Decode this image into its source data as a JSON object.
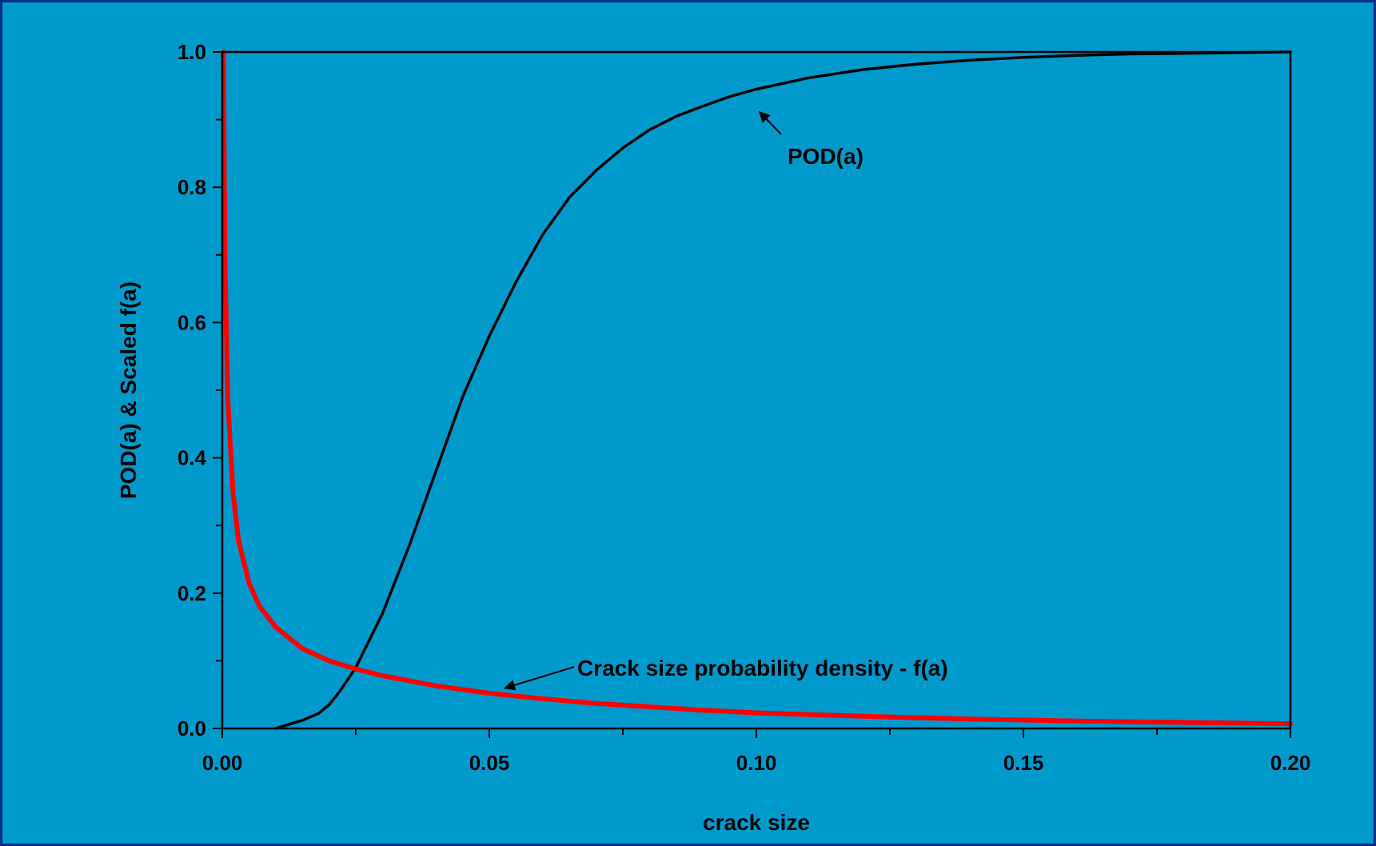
{
  "chart_data": {
    "type": "line",
    "title": "",
    "xlabel": "crack size",
    "ylabel": "POD(a) & Scaled f(a)",
    "xlim": [
      0,
      0.2
    ],
    "ylim": [
      0,
      1.0
    ],
    "x_ticks": [
      "0.00",
      "0.05",
      "0.10",
      "0.15",
      "0.20"
    ],
    "x_tick_values": [
      0,
      0.05,
      0.1,
      0.15,
      0.2
    ],
    "y_ticks": [
      "0.0",
      "0.2",
      "0.4",
      "0.6",
      "0.8",
      "1.0"
    ],
    "y_tick_values": [
      0,
      0.2,
      0.4,
      0.6,
      0.8,
      1.0
    ],
    "grid": false,
    "legend": "none",
    "series": [
      {
        "color": "#000000",
        "x": [
          0.01,
          0.012,
          0.015,
          0.018,
          0.02,
          0.022,
          0.025,
          0.03,
          0.035,
          0.04,
          0.045,
          0.05,
          0.055,
          0.06,
          0.065,
          0.07,
          0.075,
          0.08,
          0.085,
          0.09,
          0.095,
          0.1,
          0.11,
          0.12,
          0.13,
          0.14,
          0.15,
          0.16,
          0.17,
          0.18,
          0.19,
          0.2
        ],
        "y": [
          0.0,
          0.005,
          0.012,
          0.022,
          0.035,
          0.055,
          0.09,
          0.17,
          0.27,
          0.38,
          0.49,
          0.58,
          0.66,
          0.73,
          0.785,
          0.825,
          0.858,
          0.885,
          0.905,
          0.92,
          0.934,
          0.945,
          0.962,
          0.974,
          0.982,
          0.988,
          0.992,
          0.995,
          0.997,
          0.998,
          0.999,
          1.0
        ]
      },
      {
        "color": "#ff0000",
        "x": [
          0.0002,
          0.0005,
          0.001,
          0.002,
          0.003,
          0.005,
          0.007,
          0.01,
          0.015,
          0.02,
          0.025,
          0.03,
          0.04,
          0.05,
          0.06,
          0.07,
          0.08,
          0.09,
          0.1,
          0.12,
          0.14,
          0.16,
          0.18,
          0.2
        ],
        "y": [
          1.0,
          0.7,
          0.49,
          0.35,
          0.28,
          0.215,
          0.18,
          0.15,
          0.118,
          0.1,
          0.088,
          0.078,
          0.063,
          0.052,
          0.044,
          0.037,
          0.032,
          0.027,
          0.023,
          0.018,
          0.014,
          0.011,
          0.009,
          0.007
        ]
      }
    ],
    "annotations": [
      {
        "text": "POD(a)",
        "arrow_to": [
          0.1,
          0.915
        ]
      },
      {
        "text": "Crack size probability density - f(a)",
        "arrow_to": [
          0.052,
          0.062
        ]
      }
    ]
  }
}
